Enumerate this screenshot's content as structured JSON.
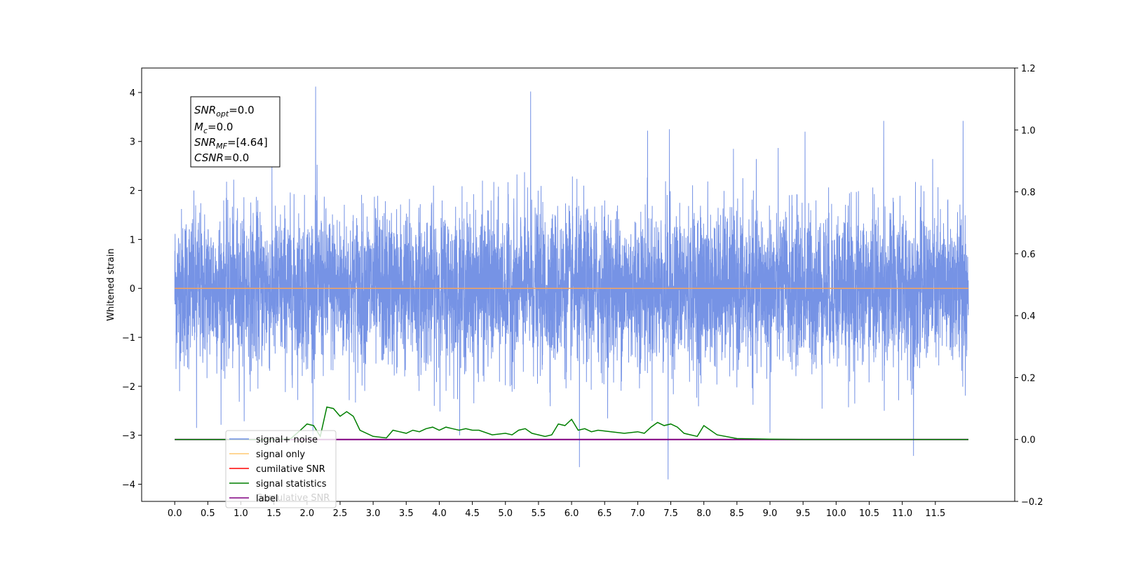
{
  "chart_data": {
    "type": "line",
    "title": "",
    "xlabel": "",
    "ylabel": "Whitened strain",
    "xlim": [
      -0.5,
      12.7
    ],
    "ylim": [
      -4.35,
      4.5
    ],
    "y2lim": [
      -0.2,
      1.2
    ],
    "x_ticks": [
      "0.0",
      "0.5",
      "1.0",
      "1.5",
      "2.0",
      "2.5",
      "3.0",
      "3.5",
      "4.0",
      "4.5",
      "5.0",
      "5.5",
      "6.0",
      "6.5",
      "7.0",
      "7.5",
      "8.0",
      "8.5",
      "9.0",
      "9.5",
      "10.0",
      "10.5",
      "11.0",
      "11.5"
    ],
    "y_ticks": [
      "4",
      "3",
      "2",
      "1",
      "0",
      "−1",
      "−2",
      "−3",
      "−4"
    ],
    "y2_ticks": [
      "1.2",
      "1.0",
      "0.8",
      "0.6",
      "0.4",
      "0.2",
      "0.0",
      "−0.2"
    ],
    "grid": false,
    "legend_position": "lower-left",
    "annotation": {
      "line1": {
        "name": "SNR",
        "sub": "opt",
        "value": "=0.0"
      },
      "line2": {
        "name": "M",
        "sub": "c",
        "value": "=0.0"
      },
      "line3": {
        "name": "SNR",
        "sub": "MF",
        "value": "=[4.64]"
      },
      "line4": {
        "name": "CSNR",
        "sub": "",
        "value": "=0.0"
      }
    },
    "legend": {
      "items": [
        {
          "label": "signal+ noise",
          "color": "#6f8de4"
        },
        {
          "label": "signal only",
          "color": "#ffc870"
        },
        {
          "label": "cumilative SNR",
          "color": "#ff0000"
        },
        {
          "label": "signal statistics",
          "color": "#007f00"
        },
        {
          "label": "label",
          "color": "#800080"
        }
      ],
      "ghost_label": "Cumulative SNR"
    },
    "series": [
      {
        "name": "signal+ noise",
        "axis": "left",
        "color": "#6f8de4",
        "x_range": [
          0.0,
          12.0
        ],
        "spikes": [
          [
            0.33,
            -2.85
          ],
          [
            2.13,
            4.12
          ],
          [
            5.38,
            4.02
          ],
          [
            6.12,
            -3.65
          ],
          [
            7.46,
            -3.9
          ],
          [
            9.0,
            -2.95
          ],
          [
            11.17,
            -3.42
          ],
          [
            10.72,
            3.42
          ],
          [
            11.92,
            3.42
          ],
          [
            7.48,
            3.25
          ],
          [
            7.15,
            3.22
          ],
          [
            9.53,
            3.2
          ]
        ]
      },
      {
        "name": "signal only",
        "axis": "left",
        "color": "#f4a460",
        "x": [
          0.0,
          12.0
        ],
        "values": [
          0.0,
          0.0
        ]
      },
      {
        "name": "signal statistics",
        "axis": "right",
        "color": "#007f00",
        "x": [
          0.0,
          0.5,
          1.0,
          1.5,
          1.75,
          1.9,
          2.0,
          2.1,
          2.2,
          2.3,
          2.4,
          2.5,
          2.6,
          2.7,
          2.8,
          3.0,
          3.2,
          3.3,
          3.4,
          3.5,
          3.6,
          3.7,
          3.8,
          3.9,
          4.0,
          4.1,
          4.2,
          4.3,
          4.4,
          4.5,
          4.6,
          4.8,
          5.0,
          5.1,
          5.2,
          5.3,
          5.4,
          5.5,
          5.6,
          5.7,
          5.8,
          5.9,
          6.0,
          6.1,
          6.2,
          6.3,
          6.4,
          6.6,
          6.8,
          7.0,
          7.1,
          7.2,
          7.3,
          7.4,
          7.5,
          7.6,
          7.7,
          7.8,
          7.9,
          8.0,
          8.2,
          8.5,
          9.0,
          9.5,
          10.0,
          10.5,
          11.0,
          11.5,
          12.0
        ],
        "values": [
          0.0,
          0.0,
          0.0,
          0.0,
          0.002,
          0.03,
          0.05,
          0.045,
          0.01,
          0.105,
          0.1,
          0.075,
          0.09,
          0.075,
          0.03,
          0.01,
          0.005,
          0.03,
          0.025,
          0.02,
          0.03,
          0.025,
          0.035,
          0.04,
          0.03,
          0.04,
          0.035,
          0.03,
          0.035,
          0.03,
          0.03,
          0.015,
          0.02,
          0.015,
          0.03,
          0.035,
          0.02,
          0.015,
          0.01,
          0.015,
          0.05,
          0.045,
          0.065,
          0.03,
          0.035,
          0.025,
          0.03,
          0.025,
          0.02,
          0.025,
          0.02,
          0.04,
          0.055,
          0.045,
          0.05,
          0.04,
          0.02,
          0.015,
          0.01,
          0.045,
          0.015,
          0.003,
          0.001,
          0.0,
          0.0,
          0.0,
          0.0,
          0.0,
          0.0
        ]
      },
      {
        "name": "label",
        "axis": "right",
        "color": "#800080",
        "x": [
          0.0,
          12.0
        ],
        "values": [
          0.0,
          0.0
        ]
      }
    ]
  }
}
